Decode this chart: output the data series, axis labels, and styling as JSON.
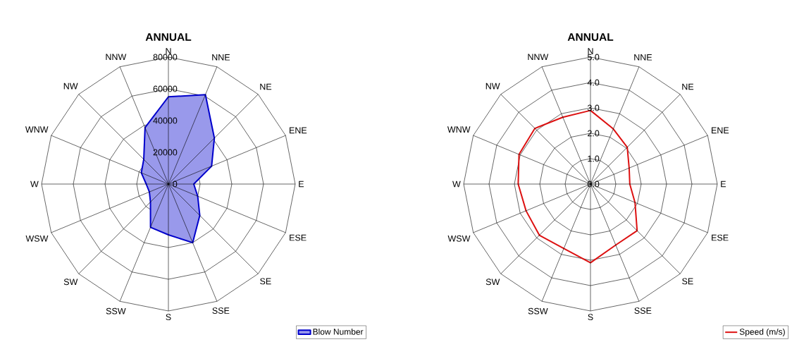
{
  "chart_data": [
    {
      "type": "radar",
      "title": "ANNUAL",
      "categories": [
        "N",
        "NNE",
        "NE",
        "ENE",
        "E",
        "ESE",
        "SE",
        "SSE",
        "S",
        "SSW",
        "SW",
        "WSW",
        "W",
        "WNW",
        "NW",
        "NNW"
      ],
      "series": [
        {
          "name": "Blow Number",
          "color": "#0000cc",
          "values": [
            55000,
            61000,
            41000,
            29500,
            16000,
            20000,
            28000,
            40000,
            32000,
            29500,
            16000,
            13000,
            14000,
            18500,
            22000,
            38500
          ]
        }
      ],
      "ylim": [
        0,
        80000
      ],
      "yticks": [
        0,
        20000,
        40000,
        60000,
        80000
      ],
      "grid": true,
      "legend": "bottom right"
    },
    {
      "type": "radar",
      "title": "ANNUAL",
      "categories": [
        "N",
        "NNE",
        "NE",
        "ENE",
        "E",
        "ESE",
        "SE",
        "SSE",
        "S",
        "SSW",
        "SW",
        "WSW",
        "W",
        "WNW",
        "NW",
        "NNW"
      ],
      "series": [
        {
          "name": "Speed (m/s)",
          "color": "#dd1111",
          "values": [
            2.9,
            2.35,
            2.05,
            1.65,
            1.55,
            1.9,
            2.6,
            2.6,
            3.1,
            2.75,
            2.85,
            2.75,
            2.85,
            3.05,
            3.1,
            2.85
          ]
        }
      ],
      "ylim": [
        0,
        5
      ],
      "yticks": [
        {
          "value": 0,
          "label": "0.0"
        },
        {
          "value": 1,
          "label": "1.0"
        },
        {
          "value": 2,
          "label": "2.0"
        },
        {
          "value": 3,
          "label": "3.0"
        },
        {
          "value": 4,
          "label": "4.0"
        },
        {
          "value": 5,
          "label": "5.0"
        }
      ],
      "grid": true,
      "legend": "bottom right"
    }
  ]
}
